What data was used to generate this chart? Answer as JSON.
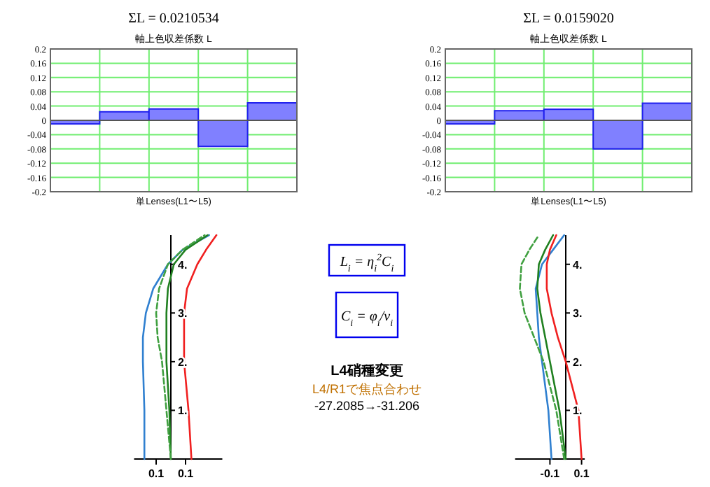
{
  "chart_data": [
    {
      "type": "bar",
      "title": "ΣL = 0.0210534",
      "subtitle": "軸上色収差係数 L",
      "xlabel": "単Lenses(L1〜L5)",
      "categories": [
        null,
        null,
        null,
        null,
        null
      ],
      "values": [
        -0.01,
        0.024,
        0.032,
        -0.073,
        0.049
      ],
      "color": "#8080ff",
      "ylim": [
        -0.2,
        0.2
      ],
      "yticks": [
        -0.2,
        -0.16,
        -0.12,
        -0.08,
        -0.04,
        0,
        0.04,
        0.08,
        0.12,
        0.16,
        0.2
      ],
      "grid": true
    },
    {
      "type": "bar",
      "title": "ΣL = 0.0159020",
      "subtitle": "軸上色収差係数 L",
      "xlabel": "単Lenses(L1〜L5)",
      "categories": [
        null,
        null,
        null,
        null,
        null
      ],
      "values": [
        -0.01,
        0.027,
        0.031,
        -0.08,
        0.048
      ],
      "color": "#8080ff",
      "ylim": [
        -0.2,
        0.2
      ],
      "yticks": [
        -0.2,
        -0.16,
        -0.12,
        -0.08,
        -0.04,
        0,
        0.04,
        0.08,
        0.12,
        0.16,
        0.2
      ],
      "grid": true
    },
    {
      "type": "line",
      "marker": "none",
      "xlim": [
        -0.25,
        0.35
      ],
      "xticks": [
        {
          "value": -0.1,
          "label": "0.1"
        },
        {
          "value": 0.1,
          "label": "0.1"
        }
      ],
      "ylim": [
        0,
        4.6
      ],
      "yticks": [
        {
          "value": 1,
          "label": "1."
        },
        {
          "value": 2,
          "label": "2."
        },
        {
          "value": 3,
          "label": "3."
        },
        {
          "value": 4,
          "label": "4."
        }
      ],
      "series": [
        {
          "color": "#3080d0",
          "line_style": "solid",
          "x": [
            -0.18,
            -0.18,
            -0.19,
            -0.19,
            -0.17,
            -0.12,
            -0.02,
            0.08,
            0.26
          ],
          "values": [
            0,
            1,
            2,
            2.5,
            3,
            3.5,
            4,
            4.3,
            4.6
          ]
        },
        {
          "color": "#208020",
          "line_style": "solid",
          "x": [
            0,
            -0.01,
            -0.03,
            -0.03,
            -0.03,
            -0.02,
            0.02,
            0.1,
            0.25
          ],
          "values": [
            0,
            1,
            2,
            2.5,
            3,
            3.5,
            4,
            4.3,
            4.6
          ]
        },
        {
          "color": "#40a040",
          "line_style": "dashed",
          "x": [
            0,
            -0.03,
            -0.06,
            -0.09,
            -0.1,
            -0.08,
            -0.02,
            0.08,
            0.23
          ],
          "values": [
            0,
            1,
            2,
            2.5,
            3,
            3.5,
            4,
            4.3,
            4.6
          ]
        },
        {
          "color": "#f02020",
          "line_style": "solid",
          "x": [
            0.14,
            0.12,
            0.09,
            0.09,
            0.09,
            0.11,
            0.18,
            0.24,
            0.31
          ],
          "values": [
            0,
            1,
            2,
            2.5,
            3,
            3.5,
            4,
            4.3,
            4.6
          ]
        }
      ]
    },
    {
      "type": "other",
      "title": "L4硝種変更",
      "annotations": [
        "L$_{i}$ = η$_{i}$$^{2}$C$_{i}$",
        "C$_{i}$ = φ$_{i}$/ν$_{i}$",
        "L4/R1で焦点合わせ",
        "-27.2085→-31.206"
      ]
    },
    {
      "type": "line",
      "marker": "none",
      "xlim": [
        -0.32,
        0.12
      ],
      "xticks": [
        -0.1,
        0.1
      ],
      "ylim": [
        0,
        4.6
      ],
      "yticks": [
        {
          "value": 1,
          "label": "1."
        },
        {
          "value": 2,
          "label": "2."
        },
        {
          "value": 3,
          "label": "3."
        },
        {
          "value": 4,
          "label": "4."
        }
      ],
      "series": [
        {
          "color": "#3080d0",
          "line_style": "solid",
          "x": [
            -0.09,
            -0.11,
            -0.15,
            -0.17,
            -0.18,
            -0.19,
            -0.15,
            -0.08,
            -0.01
          ],
          "values": [
            0,
            1,
            2,
            2.5,
            3,
            3.5,
            4,
            4.3,
            4.6
          ]
        },
        {
          "color": "#208020",
          "line_style": "solid",
          "x": [
            0,
            -0.04,
            -0.1,
            -0.13,
            -0.16,
            -0.18,
            -0.17,
            -0.13,
            -0.08
          ],
          "values": [
            0,
            1,
            2,
            2.5,
            3,
            3.5,
            4,
            4.3,
            4.6
          ]
        },
        {
          "color": "#40a040",
          "line_style": "dashed",
          "x": [
            -0.01,
            -0.06,
            -0.14,
            -0.2,
            -0.26,
            -0.29,
            -0.28,
            -0.23,
            -0.17
          ],
          "values": [
            0,
            1,
            2,
            2.5,
            3,
            3.5,
            4,
            4.3,
            4.6
          ]
        },
        {
          "color": "#f02020",
          "line_style": "solid",
          "x": [
            0.1,
            0.08,
            0,
            -0.05,
            -0.09,
            -0.12,
            -0.12,
            -0.1,
            -0.06
          ],
          "values": [
            0,
            1,
            2,
            2.5,
            3,
            3.5,
            4,
            4.3,
            4.6
          ]
        }
      ]
    }
  ]
}
